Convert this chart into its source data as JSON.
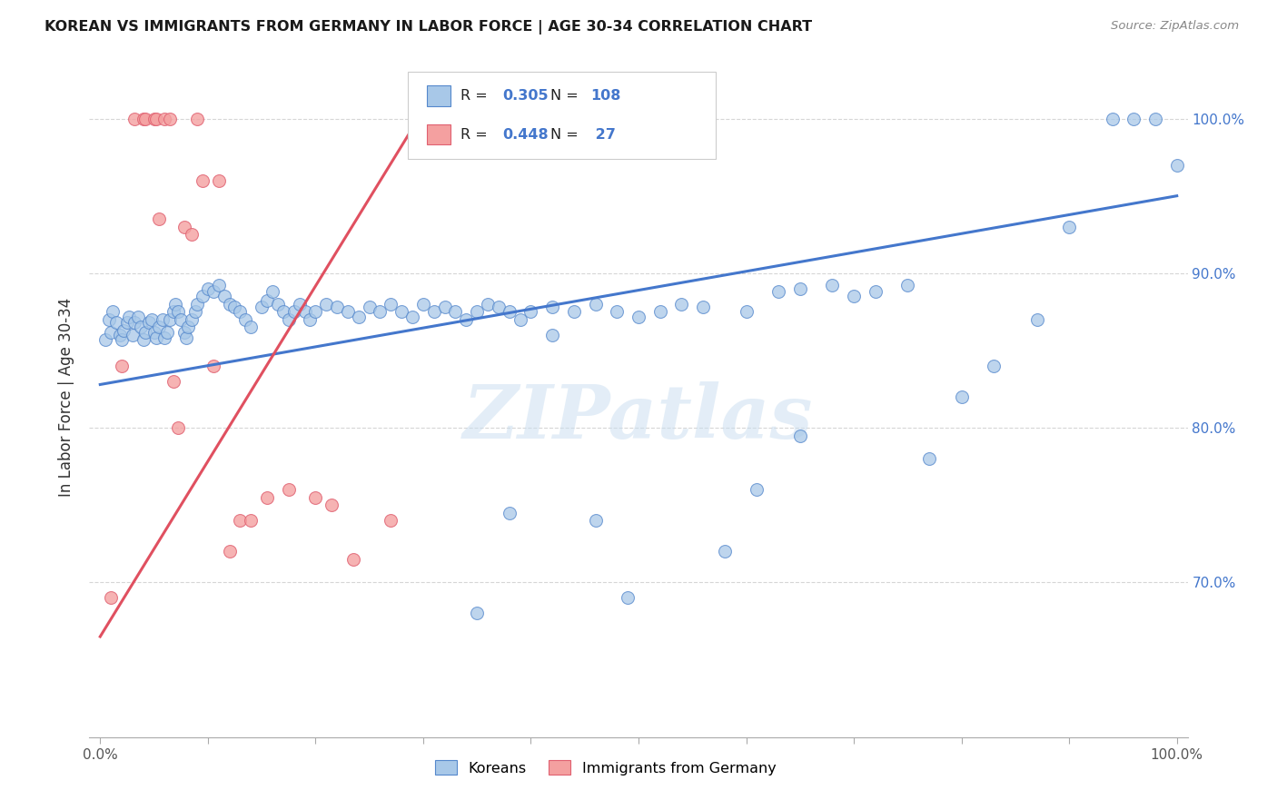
{
  "title": "KOREAN VS IMMIGRANTS FROM GERMANY IN LABOR FORCE | AGE 30-34 CORRELATION CHART",
  "source": "Source: ZipAtlas.com",
  "ylabel": "In Labor Force | Age 30-34",
  "xlim": [
    -0.01,
    1.01
  ],
  "ylim": [
    0.6,
    1.04
  ],
  "x_ticks": [
    0.0,
    0.1,
    0.2,
    0.3,
    0.4,
    0.5,
    0.6,
    0.7,
    0.8,
    0.9,
    1.0
  ],
  "y_ticks": [
    0.7,
    0.8,
    0.9,
    1.0
  ],
  "y_tick_labels": [
    "70.0%",
    "80.0%",
    "90.0%",
    "100.0%"
  ],
  "x_tick_labels": [
    "0.0%",
    "",
    "",
    "",
    "",
    "",
    "",
    "",
    "",
    "",
    "100.0%"
  ],
  "blue_color": "#a8c8e8",
  "pink_color": "#f4a0a0",
  "blue_edge_color": "#5588cc",
  "pink_edge_color": "#e06070",
  "blue_line_color": "#4477cc",
  "pink_line_color": "#e05060",
  "legend_blue_label": "Koreans",
  "legend_pink_label": "Immigrants from Germany",
  "R_blue": "0.305",
  "N_blue": "108",
  "R_pink": "0.448",
  "N_pink": "27",
  "watermark": "ZIPatlas",
  "blue_line_x0": 0.0,
  "blue_line_x1": 1.0,
  "blue_line_y0": 0.828,
  "blue_line_y1": 0.95,
  "pink_line_x0": 0.0,
  "pink_line_x1": 0.3,
  "pink_line_y0": 0.665,
  "pink_line_y1": 1.005,
  "blue_scatter_x": [
    0.005,
    0.008,
    0.01,
    0.012,
    0.015,
    0.018,
    0.02,
    0.022,
    0.025,
    0.027,
    0.03,
    0.032,
    0.035,
    0.038,
    0.04,
    0.042,
    0.045,
    0.048,
    0.05,
    0.052,
    0.055,
    0.058,
    0.06,
    0.062,
    0.065,
    0.068,
    0.07,
    0.072,
    0.075,
    0.078,
    0.08,
    0.082,
    0.085,
    0.088,
    0.09,
    0.095,
    0.1,
    0.105,
    0.11,
    0.115,
    0.12,
    0.125,
    0.13,
    0.135,
    0.14,
    0.15,
    0.155,
    0.16,
    0.165,
    0.17,
    0.175,
    0.18,
    0.185,
    0.19,
    0.195,
    0.2,
    0.21,
    0.22,
    0.23,
    0.24,
    0.25,
    0.26,
    0.27,
    0.28,
    0.29,
    0.3,
    0.31,
    0.32,
    0.33,
    0.34,
    0.35,
    0.36,
    0.37,
    0.38,
    0.39,
    0.4,
    0.42,
    0.44,
    0.46,
    0.48,
    0.5,
    0.52,
    0.54,
    0.56,
    0.58,
    0.6,
    0.63,
    0.65,
    0.68,
    0.7,
    0.72,
    0.75,
    0.8,
    0.83,
    0.87,
    0.9,
    0.94,
    0.96,
    0.98,
    1.0,
    0.42,
    0.46,
    0.49,
    0.35,
    0.38,
    0.61,
    0.65,
    0.77
  ],
  "blue_scatter_y": [
    0.857,
    0.87,
    0.862,
    0.875,
    0.868,
    0.86,
    0.857,
    0.863,
    0.868,
    0.872,
    0.86,
    0.868,
    0.872,
    0.865,
    0.857,
    0.862,
    0.868,
    0.87,
    0.862,
    0.858,
    0.865,
    0.87,
    0.858,
    0.862,
    0.87,
    0.875,
    0.88,
    0.875,
    0.87,
    0.862,
    0.858,
    0.865,
    0.87,
    0.875,
    0.88,
    0.885,
    0.89,
    0.888,
    0.892,
    0.885,
    0.88,
    0.878,
    0.875,
    0.87,
    0.865,
    0.878,
    0.882,
    0.888,
    0.88,
    0.875,
    0.87,
    0.875,
    0.88,
    0.875,
    0.87,
    0.875,
    0.88,
    0.878,
    0.875,
    0.872,
    0.878,
    0.875,
    0.88,
    0.875,
    0.872,
    0.88,
    0.875,
    0.878,
    0.875,
    0.87,
    0.875,
    0.88,
    0.878,
    0.875,
    0.87,
    0.875,
    0.878,
    0.875,
    0.88,
    0.875,
    0.872,
    0.875,
    0.88,
    0.878,
    0.72,
    0.875,
    0.888,
    0.89,
    0.892,
    0.885,
    0.888,
    0.892,
    0.82,
    0.84,
    0.87,
    0.93,
    1.0,
    1.0,
    1.0,
    0.97,
    0.86,
    0.74,
    0.69,
    0.68,
    0.745,
    0.76,
    0.795,
    0.78
  ],
  "pink_scatter_x": [
    0.01,
    0.02,
    0.032,
    0.04,
    0.042,
    0.05,
    0.052,
    0.055,
    0.06,
    0.065,
    0.068,
    0.072,
    0.078,
    0.085,
    0.09,
    0.095,
    0.105,
    0.11,
    0.12,
    0.13,
    0.14,
    0.155,
    0.175,
    0.2,
    0.215,
    0.235,
    0.27
  ],
  "pink_scatter_y": [
    0.69,
    0.84,
    1.0,
    1.0,
    1.0,
    1.0,
    1.0,
    0.935,
    1.0,
    1.0,
    0.83,
    0.8,
    0.93,
    0.925,
    1.0,
    0.96,
    0.84,
    0.96,
    0.72,
    0.74,
    0.74,
    0.755,
    0.76,
    0.755,
    0.75,
    0.715,
    0.74
  ]
}
